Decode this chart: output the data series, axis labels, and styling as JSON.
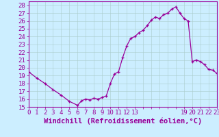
{
  "x": [
    0,
    1,
    2,
    3,
    4,
    5,
    6,
    6.5,
    7,
    7.5,
    8,
    8.5,
    9,
    9.5,
    10,
    10.5,
    11,
    11.5,
    12,
    12.5,
    13,
    13.5,
    14,
    14.5,
    15,
    15.5,
    16,
    16.5,
    17,
    17.5,
    18,
    18.5,
    19,
    19.5,
    20,
    20.5,
    21,
    21.5,
    22,
    22.5,
    23
  ],
  "y": [
    19.5,
    18.7,
    18.0,
    17.2,
    16.5,
    15.7,
    15.2,
    15.8,
    16.0,
    15.9,
    16.1,
    16.0,
    16.2,
    16.4,
    18.0,
    19.2,
    19.5,
    21.3,
    22.8,
    23.8,
    24.0,
    24.5,
    24.8,
    25.4,
    26.1,
    26.5,
    26.3,
    26.8,
    27.0,
    27.5,
    27.8,
    27.0,
    26.3,
    26.0,
    20.8,
    21.0,
    20.8,
    20.4,
    19.8,
    19.7,
    19.3
  ],
  "line_color": "#990099",
  "marker": "+",
  "bg_color": "#cceeff",
  "grid_color": "#aacccc",
  "axis_color": "#990099",
  "xlabel": "Windchill (Refroidissement éolien,°C)",
  "xlim": [
    0,
    23
  ],
  "ylim": [
    15,
    28.5
  ],
  "yticks": [
    15,
    16,
    17,
    18,
    19,
    20,
    21,
    22,
    23,
    24,
    25,
    26,
    27,
    28
  ],
  "xtick_positions": [
    0,
    1,
    2,
    3,
    4,
    5,
    6,
    7,
    8,
    9,
    10,
    11,
    12,
    13,
    19,
    20,
    21,
    22,
    23
  ],
  "xtick_labels": [
    "0",
    "1",
    "2",
    "3",
    "4",
    "5",
    "6",
    "7",
    "8",
    "9",
    "10",
    "11",
    "12",
    "13",
    "19",
    "20",
    "21",
    "22",
    "23"
  ],
  "font_size": 6.5,
  "xlabel_font_size": 7.5,
  "lw": 0.9,
  "markersize": 3.5
}
